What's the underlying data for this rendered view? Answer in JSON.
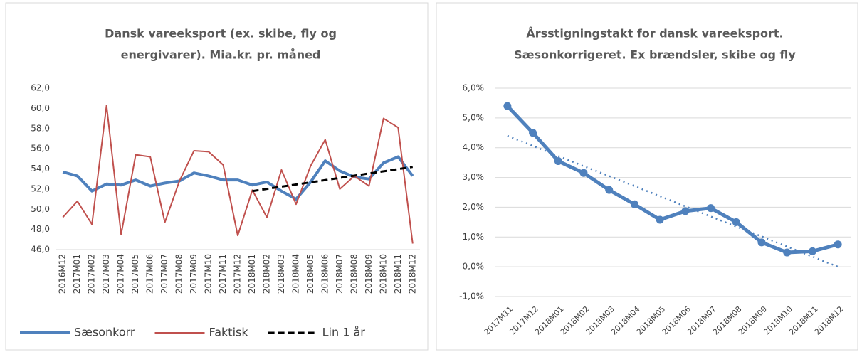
{
  "chart_data": [
    {
      "type": "line",
      "title": [
        "Dansk vareeksport (ex. skibe, fly og",
        "energivarer). Mia.kr. pr. måned"
      ],
      "categories": [
        "2016M12",
        "2017M01",
        "2017M02",
        "2017M03",
        "2017M04",
        "2017M05",
        "2017M06",
        "2017M07",
        "2017M08",
        "2017M09",
        "2017M10",
        "2017M11",
        "2017M12",
        "2018M01",
        "2018M02",
        "2018M03",
        "2018M04",
        "2018M05",
        "2018M06",
        "2018M07",
        "2018M08",
        "2018M09",
        "2018M10",
        "2018M11",
        "2018M12"
      ],
      "series": [
        {
          "name": "Sæsonkorr",
          "color": "#4f81bd",
          "width": 4,
          "style": "solid",
          "values": [
            53.7,
            53.3,
            51.8,
            52.5,
            52.4,
            52.9,
            52.3,
            52.6,
            52.8,
            53.6,
            53.3,
            52.9,
            52.9,
            52.4,
            52.7,
            51.8,
            51.0,
            52.7,
            54.8,
            53.8,
            53.2,
            53.0,
            54.6,
            55.2,
            53.3
          ]
        },
        {
          "name": "Faktisk",
          "color": "#c0504d",
          "width": 2,
          "style": "solid",
          "values": [
            49.2,
            50.8,
            48.5,
            60.3,
            47.5,
            55.4,
            55.2,
            48.7,
            52.8,
            55.8,
            55.7,
            54.4,
            47.4,
            51.9,
            49.2,
            53.9,
            50.5,
            54.3,
            56.9,
            52.0,
            53.3,
            52.3,
            59.0,
            58.1,
            46.6
          ]
        },
        {
          "name": "Lin 1 år",
          "color": "#000000",
          "width": 3,
          "style": "dashed",
          "values": [
            null,
            null,
            null,
            null,
            null,
            null,
            null,
            null,
            null,
            null,
            null,
            null,
            null,
            51.8,
            52.02,
            52.24,
            52.45,
            52.67,
            52.89,
            53.11,
            53.33,
            53.55,
            53.76,
            53.98,
            54.2
          ]
        }
      ],
      "ylim": [
        46,
        62
      ],
      "yticks": [
        {
          "value": 46,
          "label": "46,0"
        },
        {
          "value": 48,
          "label": "48,0"
        },
        {
          "value": 50,
          "label": "50,0"
        },
        {
          "value": 52,
          "label": "52,0"
        },
        {
          "value": 54,
          "label": "54,0"
        },
        {
          "value": 56,
          "label": "56,0"
        },
        {
          "value": 58,
          "label": "58,0"
        },
        {
          "value": 60,
          "label": "60,0"
        },
        {
          "value": 62,
          "label": "62,0"
        }
      ],
      "grid": false,
      "legend": "bottom",
      "label_rotation": -90
    },
    {
      "type": "line",
      "title": [
        "Årsstigningstakt for dansk vareeksport.",
        "Sæsonkorrigeret. Ex brændsler, skibe og fly"
      ],
      "categories": [
        "2017M11",
        "2017M12",
        "2018M01",
        "2018M02",
        "2018M03",
        "2018M04",
        "2018M05",
        "2018M06",
        "2018M07",
        "2018M08",
        "2018M09",
        "2018M10",
        "2018M11",
        "2018M12"
      ],
      "series": [
        {
          "color": "#4f81bd",
          "width": 5,
          "style": "solid",
          "markers": true,
          "values": [
            5.4,
            4.5,
            3.55,
            3.15,
            2.58,
            2.1,
            1.58,
            1.87,
            1.97,
            1.5,
            0.82,
            0.48,
            0.52,
            0.75
          ]
        },
        {
          "color": "#4f81bd",
          "width": 2.5,
          "style": "dotted",
          "values": [
            4.4,
            4.06,
            3.72,
            3.38,
            3.05,
            2.71,
            2.37,
            2.03,
            1.69,
            1.35,
            1.02,
            0.68,
            0.34,
            0.0
          ]
        }
      ],
      "ylim": [
        -1,
        6
      ],
      "yticks": [
        {
          "value": -1,
          "label": "-1,0%"
        },
        {
          "value": 0,
          "label": "0,0%"
        },
        {
          "value": 1,
          "label": "1,0%"
        },
        {
          "value": 2,
          "label": "2,0%"
        },
        {
          "value": 3,
          "label": "3,0%"
        },
        {
          "value": 4,
          "label": "4,0%"
        },
        {
          "value": 5,
          "label": "5,0%"
        },
        {
          "value": 6,
          "label": "6,0%"
        }
      ],
      "grid": true,
      "label_rotation": -45
    }
  ]
}
